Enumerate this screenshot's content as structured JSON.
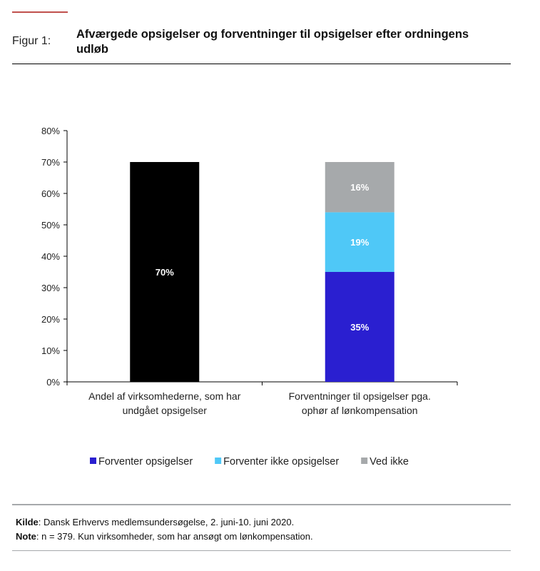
{
  "header": {
    "figure_label": "Figur 1:",
    "title_line1": "Afværgede opsigelser og forventninger til opsigelser efter ordningens",
    "title_line2": "udløb"
  },
  "footer": {
    "source_label": "Kilde",
    "source_text": ": Dansk Erhvervs medlemsundersøgelse, 2. juni-10. juni 2020.",
    "note_label": "Note",
    "note_text": ": n = 379. Kun virksomheder, som har ansøgt om lønkompensation."
  },
  "colors": {
    "accent": "#c0504d",
    "forventer": "#2a1fd0",
    "ikke": "#4fc8f7",
    "vedikke": "#a6a9ab",
    "black": "#000000"
  },
  "chart_data": {
    "type": "bar",
    "stacked": true,
    "title": "Afværgede opsigelser og forventninger til opsigelser efter ordningens udløb",
    "ylim": [
      0,
      80
    ],
    "yticks": [
      "0%",
      "10%",
      "20%",
      "30%",
      "40%",
      "50%",
      "60%",
      "70%",
      "80%"
    ],
    "categories": [
      [
        "Andel af virksomhederne, som har",
        "undgået opsigelser"
      ],
      [
        "Forventninger til opsigelser pga.",
        "ophør af lønkompensation"
      ]
    ],
    "series": [
      {
        "name": "Andel af virksomhederne, som har undgået opsigelser",
        "values": [
          70,
          null
        ],
        "color": "#000000",
        "labels": [
          "70%",
          null
        ],
        "legend": false
      },
      {
        "name": "Forventer opsigelser",
        "values": [
          null,
          35
        ],
        "color": "#2a1fd0",
        "labels": [
          null,
          "35%"
        ],
        "legend": true
      },
      {
        "name": "Forventer ikke opsigelser",
        "values": [
          null,
          19
        ],
        "color": "#4fc8f7",
        "labels": [
          null,
          "19%"
        ],
        "legend": true
      },
      {
        "name": "Ved ikke",
        "values": [
          null,
          16
        ],
        "color": "#a6a9ab",
        "labels": [
          null,
          "16%"
        ],
        "legend": true
      }
    ],
    "legend_position": "bottom"
  }
}
